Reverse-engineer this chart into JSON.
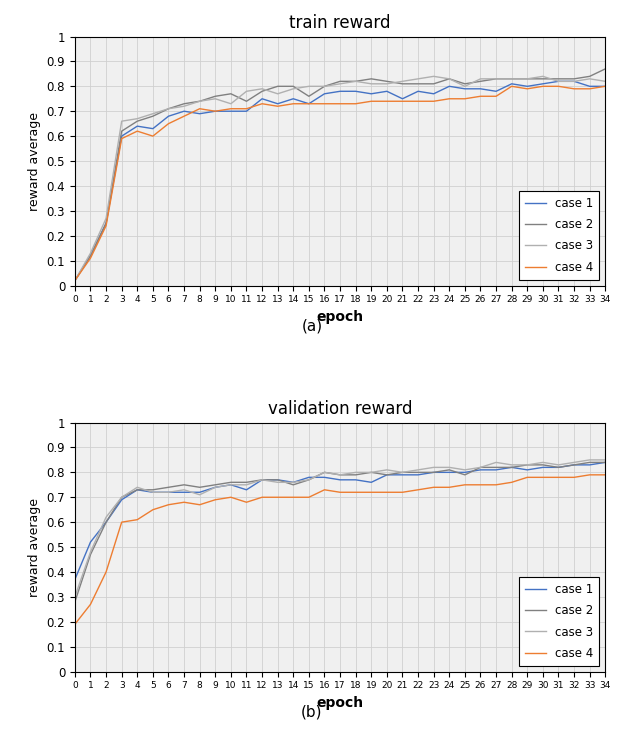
{
  "train_title": "train reward",
  "val_title": "validation reward",
  "ylabel": "reward average",
  "xlabel": "epoch",
  "caption_a": "(a)",
  "caption_b": "(b)",
  "legend_labels": [
    "case 1",
    "case 2",
    "case 3",
    "case 4"
  ],
  "colors": [
    "#4472c4",
    "#808080",
    "#b0b0b0",
    "#ed7d31"
  ],
  "ylim": [
    0,
    1.0
  ],
  "yticks": [
    0,
    0.1,
    0.2,
    0.3,
    0.4,
    0.5,
    0.6,
    0.7,
    0.8,
    0.9,
    1
  ],
  "epochs": [
    0,
    1,
    2,
    3,
    4,
    5,
    6,
    7,
    8,
    9,
    10,
    11,
    12,
    13,
    14,
    15,
    16,
    17,
    18,
    19,
    20,
    21,
    22,
    23,
    24,
    25,
    26,
    27,
    28,
    29,
    30,
    31,
    32,
    33,
    34
  ],
  "train_case1": [
    0.02,
    0.12,
    0.25,
    0.6,
    0.64,
    0.63,
    0.68,
    0.7,
    0.69,
    0.7,
    0.7,
    0.7,
    0.75,
    0.73,
    0.75,
    0.73,
    0.77,
    0.78,
    0.78,
    0.77,
    0.78,
    0.75,
    0.78,
    0.77,
    0.8,
    0.79,
    0.79,
    0.78,
    0.81,
    0.8,
    0.81,
    0.82,
    0.82,
    0.8,
    0.8
  ],
  "train_case2": [
    0.02,
    0.12,
    0.25,
    0.62,
    0.66,
    0.68,
    0.71,
    0.73,
    0.74,
    0.76,
    0.77,
    0.74,
    0.78,
    0.8,
    0.8,
    0.76,
    0.8,
    0.82,
    0.82,
    0.83,
    0.82,
    0.81,
    0.81,
    0.81,
    0.83,
    0.81,
    0.82,
    0.83,
    0.83,
    0.83,
    0.83,
    0.83,
    0.83,
    0.84,
    0.87
  ],
  "train_case3": [
    0.02,
    0.13,
    0.27,
    0.66,
    0.67,
    0.69,
    0.71,
    0.72,
    0.74,
    0.75,
    0.73,
    0.78,
    0.79,
    0.77,
    0.79,
    0.8,
    0.8,
    0.81,
    0.82,
    0.81,
    0.81,
    0.82,
    0.83,
    0.84,
    0.83,
    0.8,
    0.83,
    0.83,
    0.83,
    0.83,
    0.84,
    0.82,
    0.82,
    0.83,
    0.82
  ],
  "train_case4": [
    0.02,
    0.11,
    0.24,
    0.59,
    0.62,
    0.6,
    0.65,
    0.68,
    0.71,
    0.7,
    0.71,
    0.71,
    0.73,
    0.72,
    0.73,
    0.73,
    0.73,
    0.73,
    0.73,
    0.74,
    0.74,
    0.74,
    0.74,
    0.74,
    0.75,
    0.75,
    0.76,
    0.76,
    0.8,
    0.79,
    0.8,
    0.8,
    0.79,
    0.79,
    0.8
  ],
  "val_case1": [
    0.37,
    0.52,
    0.6,
    0.69,
    0.73,
    0.72,
    0.72,
    0.72,
    0.72,
    0.74,
    0.75,
    0.73,
    0.77,
    0.77,
    0.76,
    0.78,
    0.78,
    0.77,
    0.77,
    0.76,
    0.79,
    0.79,
    0.79,
    0.8,
    0.8,
    0.8,
    0.81,
    0.81,
    0.82,
    0.81,
    0.82,
    0.82,
    0.83,
    0.83,
    0.84
  ],
  "val_case2": [
    0.28,
    0.47,
    0.6,
    0.7,
    0.73,
    0.73,
    0.74,
    0.75,
    0.74,
    0.75,
    0.76,
    0.76,
    0.77,
    0.77,
    0.75,
    0.77,
    0.8,
    0.79,
    0.79,
    0.8,
    0.79,
    0.8,
    0.8,
    0.8,
    0.81,
    0.79,
    0.82,
    0.82,
    0.82,
    0.83,
    0.83,
    0.82,
    0.83,
    0.84,
    0.84
  ],
  "val_case3": [
    0.3,
    0.48,
    0.62,
    0.7,
    0.74,
    0.72,
    0.72,
    0.73,
    0.71,
    0.74,
    0.75,
    0.75,
    0.77,
    0.76,
    0.76,
    0.77,
    0.8,
    0.79,
    0.8,
    0.8,
    0.81,
    0.8,
    0.81,
    0.82,
    0.82,
    0.81,
    0.82,
    0.84,
    0.83,
    0.83,
    0.84,
    0.83,
    0.84,
    0.85,
    0.85
  ],
  "val_case4": [
    0.19,
    0.27,
    0.4,
    0.6,
    0.61,
    0.65,
    0.67,
    0.68,
    0.67,
    0.69,
    0.7,
    0.68,
    0.7,
    0.7,
    0.7,
    0.7,
    0.73,
    0.72,
    0.72,
    0.72,
    0.72,
    0.72,
    0.73,
    0.74,
    0.74,
    0.75,
    0.75,
    0.75,
    0.76,
    0.78,
    0.78,
    0.78,
    0.78,
    0.79,
    0.79
  ],
  "fig_width": 6.24,
  "fig_height": 7.3,
  "dpi": 100
}
